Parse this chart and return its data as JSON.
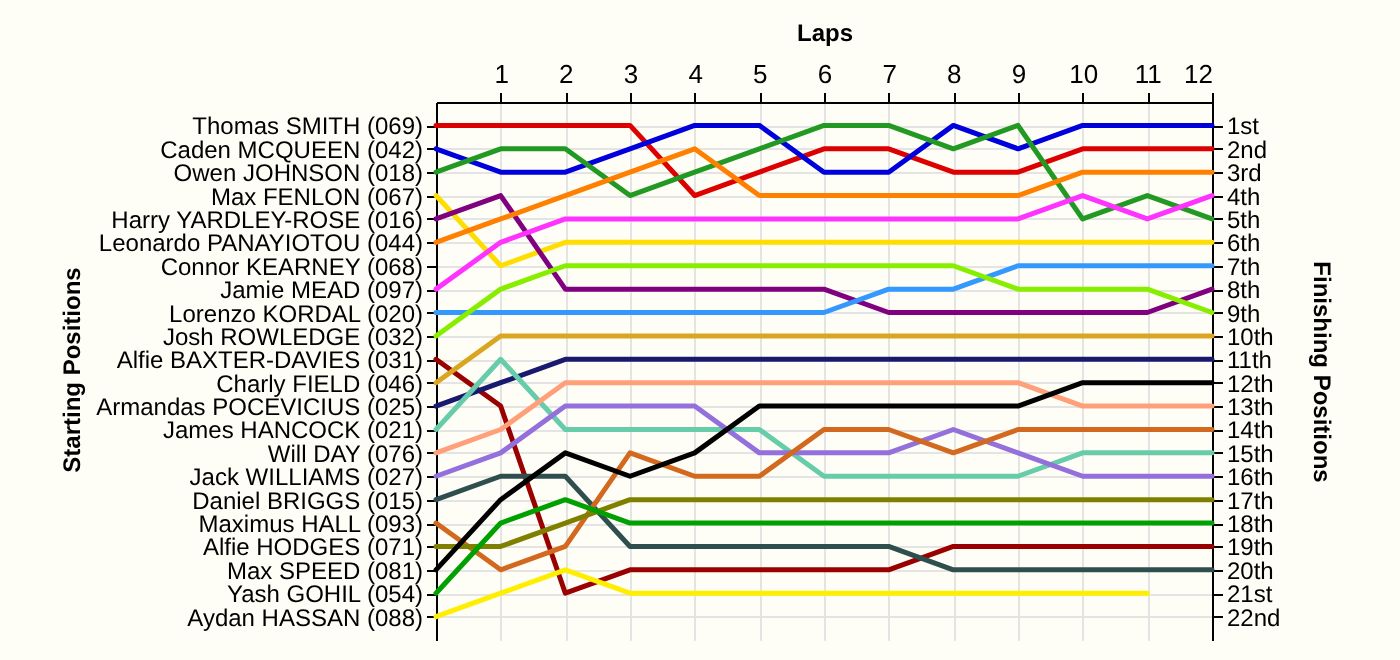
{
  "chart_data": {
    "type": "line",
    "xlabel": "Laps",
    "annotations": [
      "Starting Positions"
    ],
    "ylabel": "Finishing Positions",
    "x": [
      0,
      1,
      2,
      3,
      4,
      5,
      6,
      7,
      8,
      9,
      10,
      11,
      12
    ],
    "xlim": [
      0,
      12
    ],
    "xticks": [
      1,
      2,
      3,
      4,
      5,
      6,
      7,
      8,
      9,
      10,
      11,
      12
    ],
    "ylim": [
      23,
      0
    ],
    "y2_categories": [
      "Thomas SMITH (069)",
      "Caden MCQUEEN (042)",
      "Owen JOHNSON (018)",
      "Max FENLON (067)",
      "Harry YARDLEY-ROSE (016)",
      "Leonardo PANAYIOTOU (044)",
      "Connor KEARNEY (068)",
      "Jamie MEAD (097)",
      "Lorenzo KORDAL (020)",
      "Josh ROWLEDGE (032)",
      "Alfie BAXTER-DAVIES (031)",
      "Charly FIELD (046)",
      "Armandas POCEVICIUS (025)",
      "James HANCOCK (021)",
      "Will DAY (076)",
      "Jack WILLIAMS (027)",
      "Daniel BRIGGS (015)",
      "Maximus HALL (093)",
      "Alfie HODGES (071)",
      "Max SPEED (081)",
      "Yash GOHIL (054)",
      "Aydan HASSAN (088)"
    ],
    "yticks": [
      {
        "value": 1,
        "label": "1st"
      },
      {
        "value": 2,
        "label": "2nd"
      },
      {
        "value": 3,
        "label": "3rd"
      },
      {
        "value": 4,
        "label": "4th"
      },
      {
        "value": 5,
        "label": "5th"
      },
      {
        "value": 6,
        "label": "6th"
      },
      {
        "value": 7,
        "label": "7th"
      },
      {
        "value": 8,
        "label": "8th"
      },
      {
        "value": 9,
        "label": "9th"
      },
      {
        "value": 10,
        "label": "10th"
      },
      {
        "value": 11,
        "label": "11th"
      },
      {
        "value": 12,
        "label": "12th"
      },
      {
        "value": 13,
        "label": "13th"
      },
      {
        "value": 14,
        "label": "14th"
      },
      {
        "value": 15,
        "label": "15th"
      },
      {
        "value": 16,
        "label": "16th"
      },
      {
        "value": 17,
        "label": "17th"
      },
      {
        "value": 18,
        "label": "18th"
      },
      {
        "value": 19,
        "label": "19th"
      },
      {
        "value": 20,
        "label": "20th"
      },
      {
        "value": 21,
        "label": "21st"
      },
      {
        "value": 22,
        "label": "22nd"
      }
    ],
    "grid": true,
    "series": [
      {
        "color": "#dd0000",
        "values": [
          1,
          1,
          1,
          1,
          4,
          3,
          2,
          2,
          3,
          3,
          2,
          2,
          2
        ]
      },
      {
        "color": "#0000dd",
        "values": [
          2,
          3,
          3,
          2,
          1,
          1,
          3,
          3,
          1,
          2,
          1,
          1,
          1
        ]
      },
      {
        "color": "#229922",
        "values": [
          3,
          2,
          2,
          4,
          3,
          2,
          1,
          1,
          2,
          1,
          5,
          4,
          5
        ]
      },
      {
        "color": "#ffdd00",
        "values": [
          4,
          7,
          6,
          6,
          6,
          6,
          6,
          6,
          6,
          6,
          6,
          6,
          6
        ]
      },
      {
        "color": "#800080",
        "values": [
          5,
          4,
          8,
          8,
          8,
          8,
          8,
          9,
          9,
          9,
          9,
          9,
          8
        ]
      },
      {
        "color": "#ff8000",
        "values": [
          6,
          5,
          4,
          3,
          2,
          4,
          4,
          4,
          4,
          4,
          3,
          3,
          3
        ]
      },
      {
        "color": "#ff33ff",
        "values": [
          8,
          6,
          5,
          5,
          5,
          5,
          5,
          5,
          5,
          5,
          4,
          5,
          4
        ]
      },
      {
        "color": "#3399ff",
        "values": [
          9,
          9,
          9,
          9,
          9,
          9,
          9,
          8,
          8,
          7,
          7,
          7,
          7
        ]
      },
      {
        "color": "#88ee00",
        "values": [
          10,
          8,
          7,
          7,
          7,
          7,
          7,
          7,
          7,
          8,
          8,
          8,
          9
        ]
      },
      {
        "color": "#990000",
        "values": [
          11,
          13,
          21,
          20,
          20,
          20,
          20,
          20,
          19,
          19,
          19,
          19,
          19
        ]
      },
      {
        "color": "#daa520",
        "values": [
          12,
          10,
          10,
          10,
          10,
          10,
          10,
          10,
          10,
          10,
          10,
          10,
          10
        ]
      },
      {
        "color": "#191970",
        "values": [
          13,
          12,
          11,
          11,
          11,
          11,
          11,
          11,
          11,
          11,
          11,
          11,
          11
        ]
      },
      {
        "color": "#66ccaa",
        "values": [
          14,
          11,
          14,
          14,
          14,
          14,
          16,
          16,
          16,
          16,
          15,
          15,
          15
        ]
      },
      {
        "color": "#ffa07a",
        "values": [
          15,
          14,
          12,
          12,
          12,
          12,
          12,
          12,
          12,
          12,
          13,
          13,
          13
        ]
      },
      {
        "color": "#9370db",
        "values": [
          16,
          15,
          13,
          13,
          13,
          15,
          15,
          15,
          14,
          15,
          16,
          16,
          16
        ]
      },
      {
        "color": "#2f4f4f",
        "values": [
          17,
          16,
          16,
          19,
          19,
          19,
          19,
          19,
          20,
          20,
          20,
          20,
          20
        ]
      },
      {
        "color": "#d2691e",
        "values": [
          18,
          20,
          19,
          15,
          16,
          16,
          14,
          14,
          15,
          14,
          14,
          14,
          14
        ]
      },
      {
        "color": "#808000",
        "values": [
          19,
          19,
          18,
          17,
          17,
          17,
          17,
          17,
          17,
          17,
          17,
          17,
          17
        ]
      },
      {
        "color": "#000000",
        "values": [
          20,
          17,
          15,
          16,
          15,
          13,
          13,
          13,
          13,
          13,
          12,
          12,
          12
        ]
      },
      {
        "color": "#00a000",
        "values": [
          21,
          18,
          17,
          18,
          18,
          18,
          18,
          18,
          18,
          18,
          18,
          18,
          18
        ]
      },
      {
        "color": "#ffee00",
        "values": [
          22,
          21,
          20,
          21,
          21,
          21,
          21,
          21,
          21,
          21,
          21,
          21,
          null
        ]
      }
    ]
  }
}
